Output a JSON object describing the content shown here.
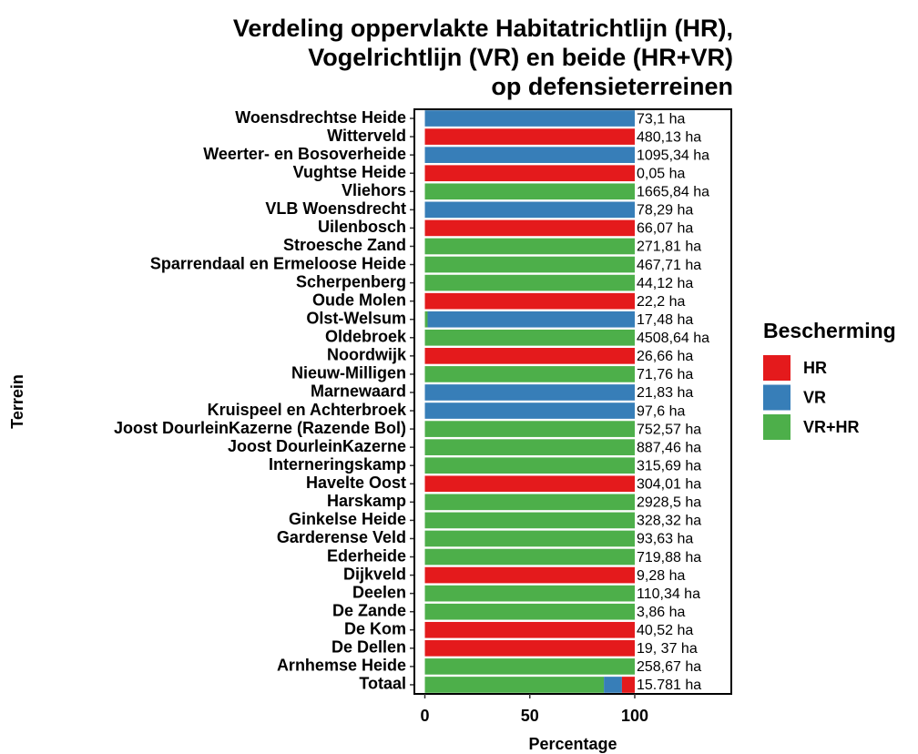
{
  "chart_data": {
    "type": "stacked-barh",
    "title": [
      "Verdeling oppervlakte Habitatrichtlijn (HR),",
      "Vogelrichtlijn (VR) en beide (HR+VR)",
      "op defensieterreinen"
    ],
    "x_label": "Percentage",
    "y_label": "Terrein",
    "legend_title": "Bescherming",
    "legend_position": "right",
    "categories": [
      "Woensdrechtse Heide",
      "Witterveld",
      "Weerter- en Bosoverheide",
      "Vughtse Heide",
      "Vliehors",
      "VLB Woensdrecht",
      "Uilenbosch",
      "Stroesche Zand",
      "Sparrendaal en Ermeloose Heide",
      "Scherpenberg",
      "Oude Molen",
      "Olst-Welsum",
      "Oldebroek",
      "Noordwijk",
      "Nieuw-Milligen",
      "Marnewaard",
      "Kruispeel en Achterbroek",
      "Joost DourleinKazerne (Razende Bol)",
      "Joost DourleinKazerne",
      "Interneringskamp",
      "Havelte Oost",
      "Harskamp",
      "Ginkelse Heide",
      "Garderense Veld",
      "Ederheide",
      "Dijkveld",
      "Deelen",
      "De Zande",
      "De Kom",
      "De Dellen",
      "Arnhemse Heide",
      "Totaal"
    ],
    "bar_labels": [
      "73,1 ha",
      "480,13 ha",
      "1095,34 ha",
      "0,05 ha",
      "1665,84 ha",
      "78,29 ha",
      "66,07 ha",
      "271,81 ha",
      "467,71 ha",
      "44,12 ha",
      "22,2 ha",
      "17,48 ha",
      "4508,64 ha",
      "26,66 ha",
      "71,76 ha",
      "21,83 ha",
      "97,6 ha",
      "752,57 ha",
      "887,46 ha",
      "315,69 ha",
      "304,01 ha",
      "2928,5 ha",
      "328,32 ha",
      "93,63 ha",
      "719,88 ha",
      "9,28 ha",
      "110,34 ha",
      "3,86 ha",
      "40,52 ha",
      "19, 37 ha",
      "258,67 ha",
      "15.781 ha"
    ],
    "series": [
      {
        "name": "HR",
        "color": "#e41a1c",
        "values": [
          null,
          100,
          null,
          100,
          null,
          null,
          100,
          null,
          null,
          null,
          100,
          null,
          null,
          100,
          null,
          null,
          null,
          null,
          null,
          null,
          100,
          null,
          null,
          null,
          null,
          100,
          null,
          null,
          100,
          100,
          null,
          6.1
        ]
      },
      {
        "name": "VR",
        "color": "#377eb8",
        "values": [
          100,
          null,
          100,
          null,
          null,
          100,
          null,
          null,
          null,
          null,
          null,
          98.7,
          null,
          null,
          null,
          100,
          100,
          null,
          null,
          null,
          null,
          null,
          null,
          null,
          null,
          null,
          null,
          null,
          null,
          null,
          null,
          8.6
        ]
      },
      {
        "name": "VR+HR",
        "color": "#4daf4a",
        "values": [
          null,
          null,
          null,
          null,
          100,
          null,
          null,
          100,
          100,
          100,
          null,
          1.3,
          100,
          null,
          100,
          null,
          null,
          100,
          100,
          100,
          null,
          100,
          100,
          100,
          100,
          null,
          100,
          100,
          null,
          null,
          100,
          85.3
        ]
      }
    ],
    "xlim": [
      -5,
      146
    ],
    "xticks": [
      0,
      50,
      100
    ]
  }
}
